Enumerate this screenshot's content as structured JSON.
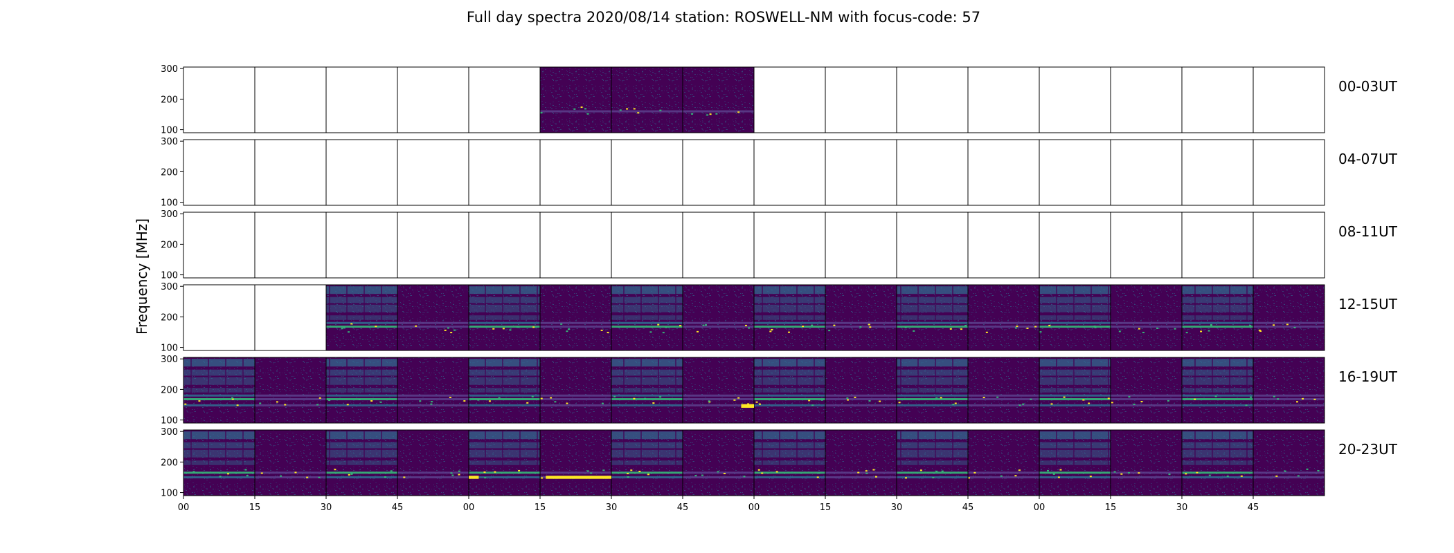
{
  "chart_data": {
    "type": "heatmap",
    "title": "Full day spectra 2020/08/14 station: ROSWELL-NM with focus-code: 57",
    "ylabel": "Frequency [MHz]",
    "xlabel": "",
    "ylim": [
      90,
      305
    ],
    "y_ticks": [
      100,
      200,
      300
    ],
    "x_tick_labels": [
      "00",
      "15",
      "30",
      "45",
      "00",
      "15",
      "30",
      "45",
      "00",
      "15",
      "30",
      "45",
      "00",
      "15",
      "30",
      "45"
    ],
    "panels_per_row": 16,
    "minutes_per_panel": 15,
    "colormap": "viridis",
    "colors": {
      "low": "#440154",
      "mid": "#31688e",
      "high": "#35b779",
      "max": "#fde725"
    },
    "rows": [
      {
        "label": "00-03UT",
        "panels_with_data": [
          5,
          6,
          7
        ],
        "strong_lines_mhz": [
          160
        ]
      },
      {
        "label": "04-07UT",
        "panels_with_data": [],
        "strong_lines_mhz": []
      },
      {
        "label": "08-11UT",
        "panels_with_data": [],
        "strong_lines_mhz": []
      },
      {
        "label": "12-15UT",
        "panels_with_data": [
          2,
          3,
          4,
          5,
          6,
          7,
          8,
          9,
          10,
          11,
          12,
          13,
          14,
          15
        ],
        "strong_lines_mhz": [
          168,
          180
        ]
      },
      {
        "label": "16-19UT",
        "panels_with_data": [
          0,
          1,
          2,
          3,
          4,
          5,
          6,
          7,
          8,
          9,
          10,
          11,
          12,
          13,
          14,
          15
        ],
        "strong_lines_mhz": [
          168,
          180,
          148
        ]
      },
      {
        "label": "20-23UT",
        "panels_with_data": [
          0,
          1,
          2,
          3,
          4,
          5,
          6,
          7,
          8,
          9,
          10,
          11,
          12,
          13,
          14,
          15
        ],
        "strong_lines_mhz": [
          165,
          150
        ]
      }
    ]
  }
}
